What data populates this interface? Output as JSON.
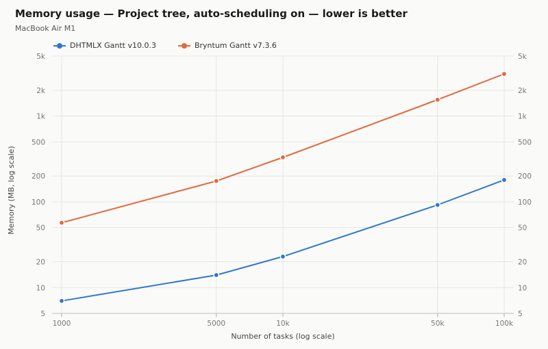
{
  "header": {
    "title": "Memory usage — Project tree, auto-scheduling on — lower is better",
    "subtitle": "MacBook Air M1"
  },
  "chart_data": {
    "type": "line",
    "title": "Memory usage — Project tree, auto-scheduling on — lower is better",
    "subtitle": "MacBook Air M1",
    "xlabel": "Number of tasks (log scale)",
    "ylabel": "Memory (MB, log scale)",
    "x_scale": "log",
    "y_scale": "log",
    "x": [
      1000,
      5000,
      10000,
      50000,
      100000
    ],
    "xlim": [
      1000,
      100000
    ],
    "ylim": [
      5,
      5000
    ],
    "x_ticks": [
      {
        "value": 1000,
        "label": "1000"
      },
      {
        "value": 5000,
        "label": "5000"
      },
      {
        "value": 10000,
        "label": "10k"
      },
      {
        "value": 50000,
        "label": "50k"
      },
      {
        "value": 100000,
        "label": "100k"
      }
    ],
    "y_ticks": [
      {
        "value": 5,
        "label": "5"
      },
      {
        "value": 10,
        "label": "10"
      },
      {
        "value": 20,
        "label": "20"
      },
      {
        "value": 50,
        "label": "50"
      },
      {
        "value": 100,
        "label": "100"
      },
      {
        "value": 200,
        "label": "200"
      },
      {
        "value": 500,
        "label": "500"
      },
      {
        "value": 1000,
        "label": "1k"
      },
      {
        "value": 2000,
        "label": "2k"
      },
      {
        "value": 5000,
        "label": "5k"
      }
    ],
    "grid": true,
    "legend_position": "top-left",
    "series": [
      {
        "name": "DHTMLX Gantt v10.0.3",
        "color": "#2f77d0",
        "values": [
          7,
          14,
          23,
          92,
          180
        ]
      },
      {
        "name": "Bryntum Gantt v7.3.6",
        "color": "#e8673a",
        "values": [
          57,
          175,
          330,
          1550,
          3100
        ]
      }
    ]
  }
}
